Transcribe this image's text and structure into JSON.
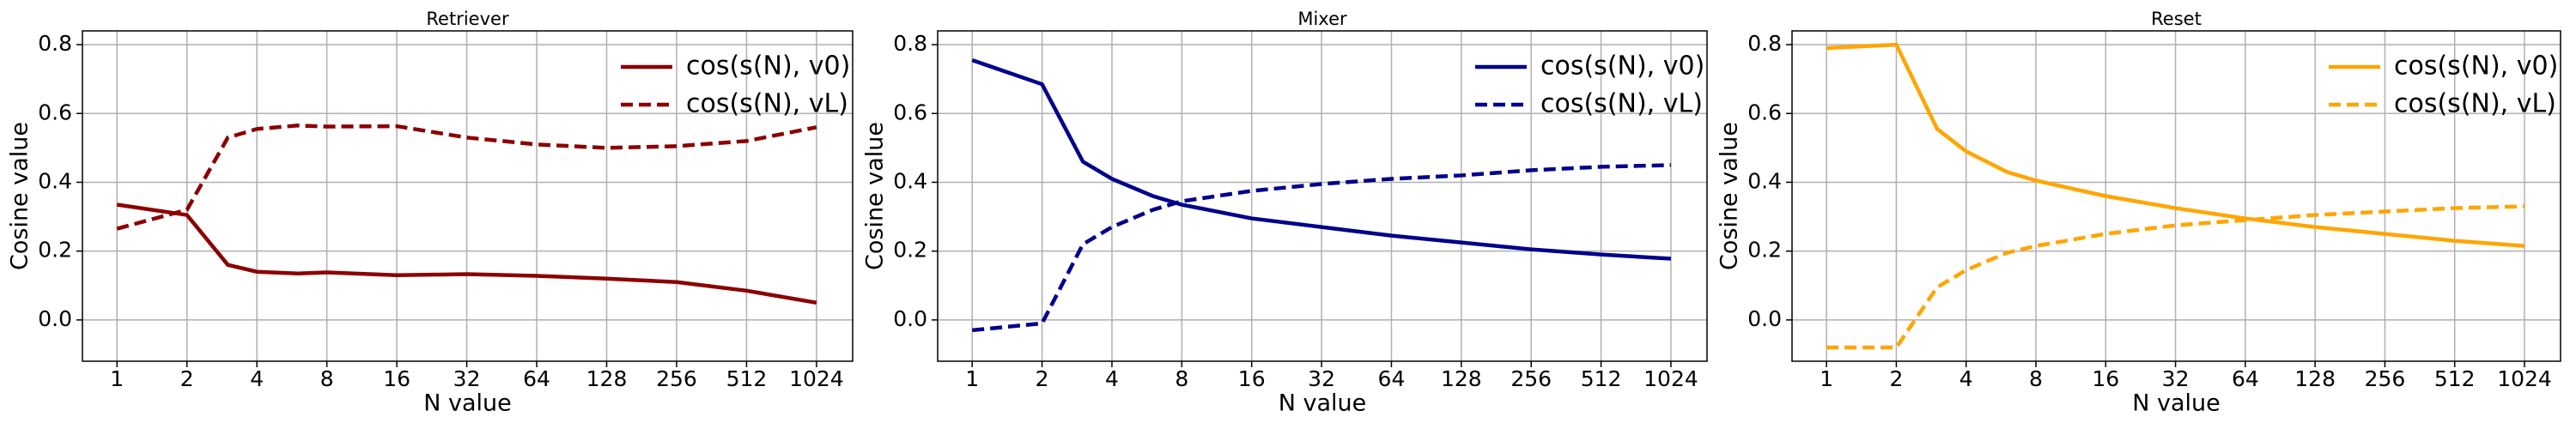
{
  "chart_data": [
    {
      "type": "line",
      "title": "Retriever",
      "xlabel": "N value",
      "ylabel": "Cosine value",
      "x": [
        1,
        2,
        3,
        4,
        6,
        8,
        16,
        32,
        64,
        128,
        256,
        512,
        1024
      ],
      "xscale": "log",
      "xlim": [
        0.71,
        1465
      ],
      "xticks": [
        1,
        2,
        4,
        8,
        16,
        32,
        64,
        128,
        256,
        512,
        1024
      ],
      "ylim": [
        -0.12,
        0.84
      ],
      "yticks": [
        {
          "value": 0,
          "label": "0.0"
        },
        0.2,
        0.4,
        0.6,
        0.8
      ],
      "grid": true,
      "legend": "upper right",
      "series": [
        {
          "name": "cos(s(N), v0)",
          "color": "#8b0000",
          "linestyle": "solid",
          "values": [
            0.335,
            0.305,
            0.16,
            0.14,
            0.135,
            0.138,
            0.13,
            0.133,
            0.128,
            0.12,
            0.11,
            0.085,
            0.05
          ]
        },
        {
          "name": "cos(s(N), vL)",
          "color": "#8b0000",
          "linestyle": "dashed",
          "values": [
            0.265,
            0.32,
            0.53,
            0.555,
            0.565,
            0.562,
            0.563,
            0.53,
            0.51,
            0.5,
            0.505,
            0.52,
            0.56
          ]
        }
      ]
    },
    {
      "type": "line",
      "title": "Mixer",
      "xlabel": "N value",
      "ylabel": "Cosine value",
      "x": [
        1,
        2,
        3,
        4,
        6,
        8,
        16,
        32,
        64,
        128,
        256,
        512,
        1024
      ],
      "xscale": "log",
      "xlim": [
        0.71,
        1465
      ],
      "xticks": [
        1,
        2,
        4,
        8,
        16,
        32,
        64,
        128,
        256,
        512,
        1024
      ],
      "ylim": [
        -0.12,
        0.84
      ],
      "yticks": [
        {
          "value": 0,
          "label": "0.0"
        },
        0.2,
        0.4,
        0.6,
        0.8
      ],
      "grid": true,
      "legend": "upper right",
      "series": [
        {
          "name": "cos(s(N), v0)",
          "color": "#00008b",
          "linestyle": "solid",
          "values": [
            0.755,
            0.685,
            0.46,
            0.41,
            0.36,
            0.335,
            0.295,
            0.27,
            0.245,
            0.225,
            0.205,
            0.19,
            0.178
          ]
        },
        {
          "name": "cos(s(N), vL)",
          "color": "#00008b",
          "linestyle": "dashed",
          "values": [
            -0.03,
            -0.01,
            0.22,
            0.27,
            0.32,
            0.345,
            0.375,
            0.395,
            0.41,
            0.42,
            0.435,
            0.445,
            0.45
          ]
        }
      ]
    },
    {
      "type": "line",
      "title": "Reset",
      "xlabel": "N value",
      "ylabel": "Cosine value",
      "x": [
        1,
        2,
        3,
        4,
        6,
        8,
        16,
        32,
        64,
        128,
        256,
        512,
        1024
      ],
      "xscale": "log",
      "xlim": [
        0.71,
        1465
      ],
      "xticks": [
        1,
        2,
        4,
        8,
        16,
        32,
        64,
        128,
        256,
        512,
        1024
      ],
      "ylim": [
        -0.12,
        0.84
      ],
      "yticks": [
        {
          "value": 0,
          "label": "0.0"
        },
        0.2,
        0.4,
        0.6,
        0.8
      ],
      "grid": true,
      "legend": "upper right",
      "series": [
        {
          "name": "cos(s(N), v0)",
          "color": "#ffa500",
          "linestyle": "solid",
          "values": [
            0.79,
            0.8,
            0.555,
            0.49,
            0.43,
            0.405,
            0.36,
            0.325,
            0.295,
            0.27,
            0.25,
            0.23,
            0.215
          ]
        },
        {
          "name": "cos(s(N), vL)",
          "color": "#ffa500",
          "linestyle": "dashed",
          "values": [
            -0.08,
            -0.08,
            0.095,
            0.145,
            0.195,
            0.215,
            0.25,
            0.275,
            0.29,
            0.305,
            0.315,
            0.325,
            0.33
          ]
        }
      ]
    }
  ]
}
